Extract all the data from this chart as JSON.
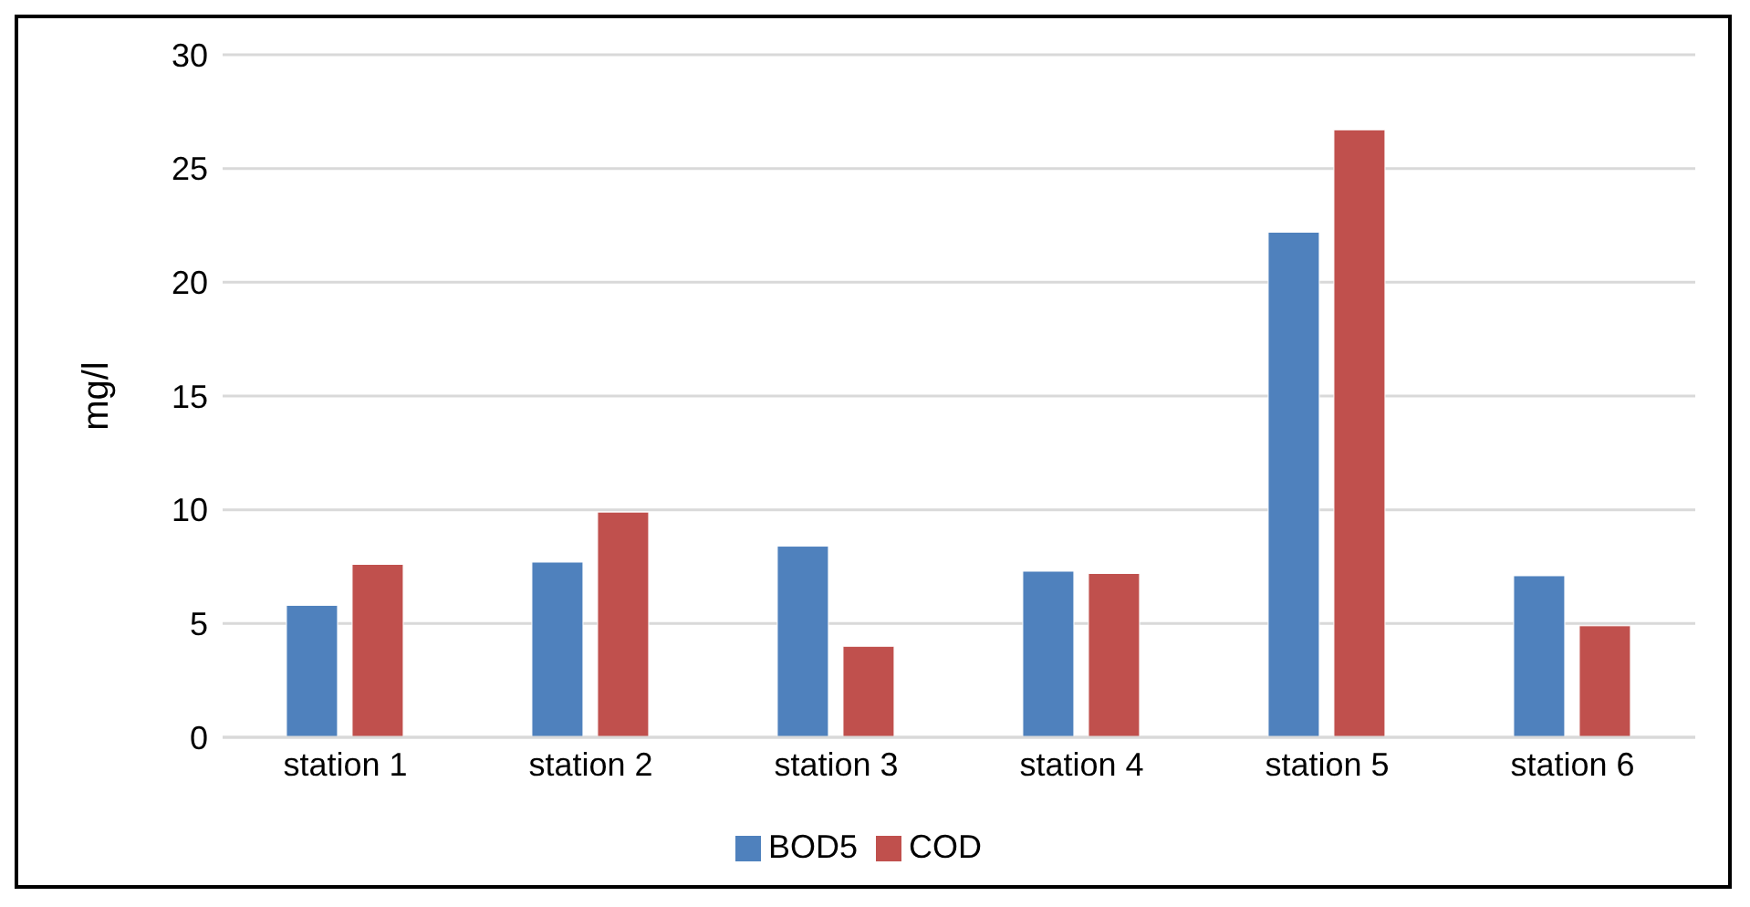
{
  "chart_data": {
    "type": "bar",
    "ylabel": "mg/l",
    "categories": [
      "station 1",
      "station 2",
      "station 3",
      "station 4",
      "station 5",
      "station 6"
    ],
    "series": [
      {
        "name": "BOD5",
        "color": "#4f81bd",
        "values": [
          5.8,
          7.7,
          8.4,
          7.3,
          22.2,
          7.1
        ]
      },
      {
        "name": "COD",
        "color": "#c0504d",
        "values": [
          7.6,
          9.9,
          4.0,
          7.2,
          26.7,
          4.9
        ]
      }
    ],
    "ylim": [
      0,
      30
    ],
    "yticks": [
      0,
      5,
      10,
      15,
      20,
      25,
      30
    ],
    "grid": "y",
    "legend": "bottom"
  }
}
